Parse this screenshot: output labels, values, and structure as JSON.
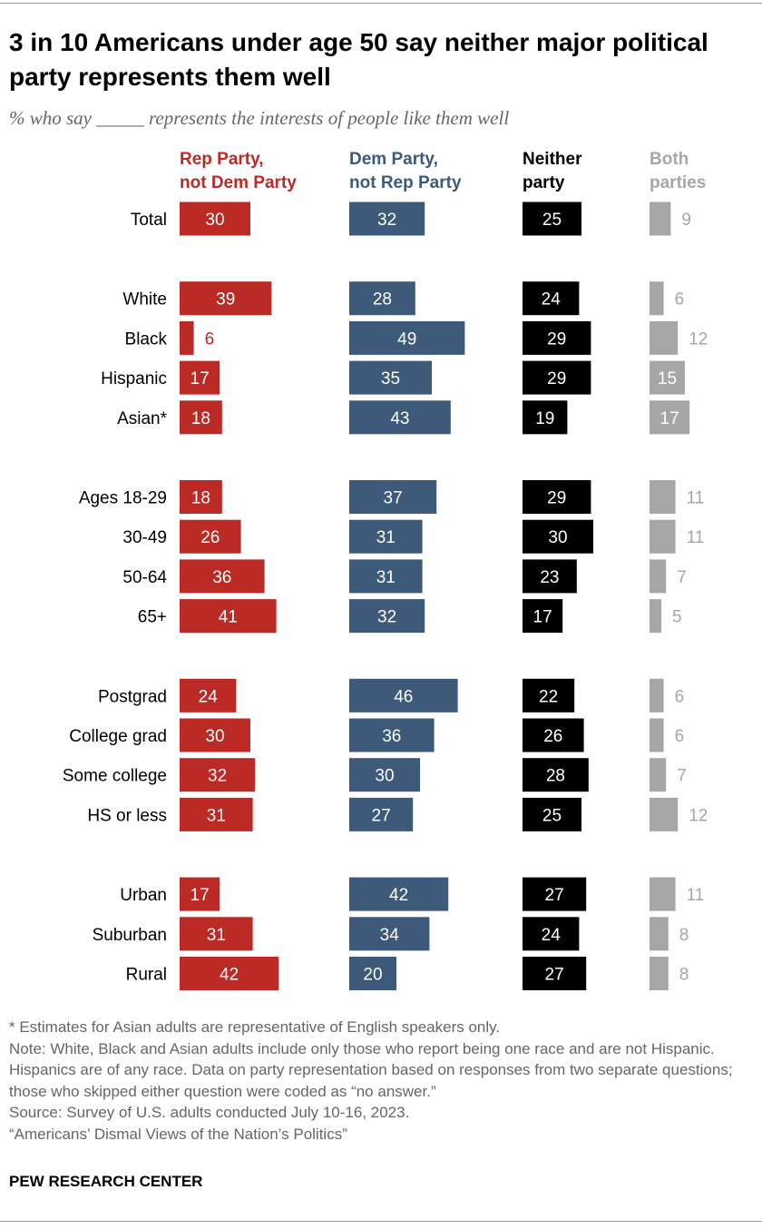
{
  "title": "3 in 10 Americans under age 50 say neither major political party represents them well",
  "subtitle": "% who say _____ represents the interests of people like them well",
  "chart_data": {
    "type": "bar",
    "title": "3 in 10 Americans under age 50 say neither major political party represents them well",
    "series": [
      {
        "name": "Rep Party, not Dem Party",
        "name_lines": [
          "Rep Party,",
          "not Dem Party"
        ],
        "color": "#BB2A25",
        "values": [
          30,
          39,
          6,
          17,
          18,
          18,
          26,
          36,
          41,
          24,
          30,
          32,
          31,
          17,
          31,
          42
        ]
      },
      {
        "name": "Dem Party, not Rep Party",
        "name_lines": [
          "Dem Party,",
          "not Rep Party"
        ],
        "color": "#3D5A7A",
        "values": [
          32,
          28,
          49,
          35,
          43,
          37,
          31,
          31,
          32,
          46,
          36,
          30,
          27,
          42,
          34,
          20
        ]
      },
      {
        "name": "Neither party",
        "name_lines": [
          "Neither",
          "party"
        ],
        "color": "#000000",
        "values": [
          25,
          24,
          29,
          29,
          19,
          29,
          30,
          23,
          17,
          22,
          26,
          28,
          25,
          27,
          24,
          27
        ]
      },
      {
        "name": "Both parties",
        "name_lines": [
          "Both",
          "parties"
        ],
        "color": "#A6A6A6",
        "values": [
          9,
          6,
          12,
          15,
          17,
          11,
          11,
          7,
          5,
          6,
          6,
          7,
          12,
          11,
          8,
          8
        ]
      }
    ],
    "categories": [
      "Total",
      "White",
      "Black",
      "Hispanic",
      "Asian*",
      "Ages 18-29",
      "30-49",
      "50-64",
      "65+",
      "Postgrad",
      "College grad",
      "Some college",
      "HS or less",
      "Urban",
      "Suburban",
      "Rural"
    ],
    "groups": [
      [
        0
      ],
      [
        1,
        2,
        3,
        4
      ],
      [
        5,
        6,
        7,
        8
      ],
      [
        9,
        10,
        11,
        12
      ],
      [
        13,
        14,
        15
      ]
    ]
  },
  "notes": [
    "* Estimates for Asian adults are representative of English speakers only.",
    "Note: White, Black and Asian adults include only those who report being one race and are not Hispanic. Hispanics are of any race. Data on party representation based on responses from two separate questions; those who skipped either question were coded as “no answer.”",
    "Source: Survey of U.S. adults conducted July 10-16, 2023.",
    "“Americans’ Dismal Views of the Nation’s Politics”"
  ],
  "source_org": "PEW RESEARCH CENTER"
}
